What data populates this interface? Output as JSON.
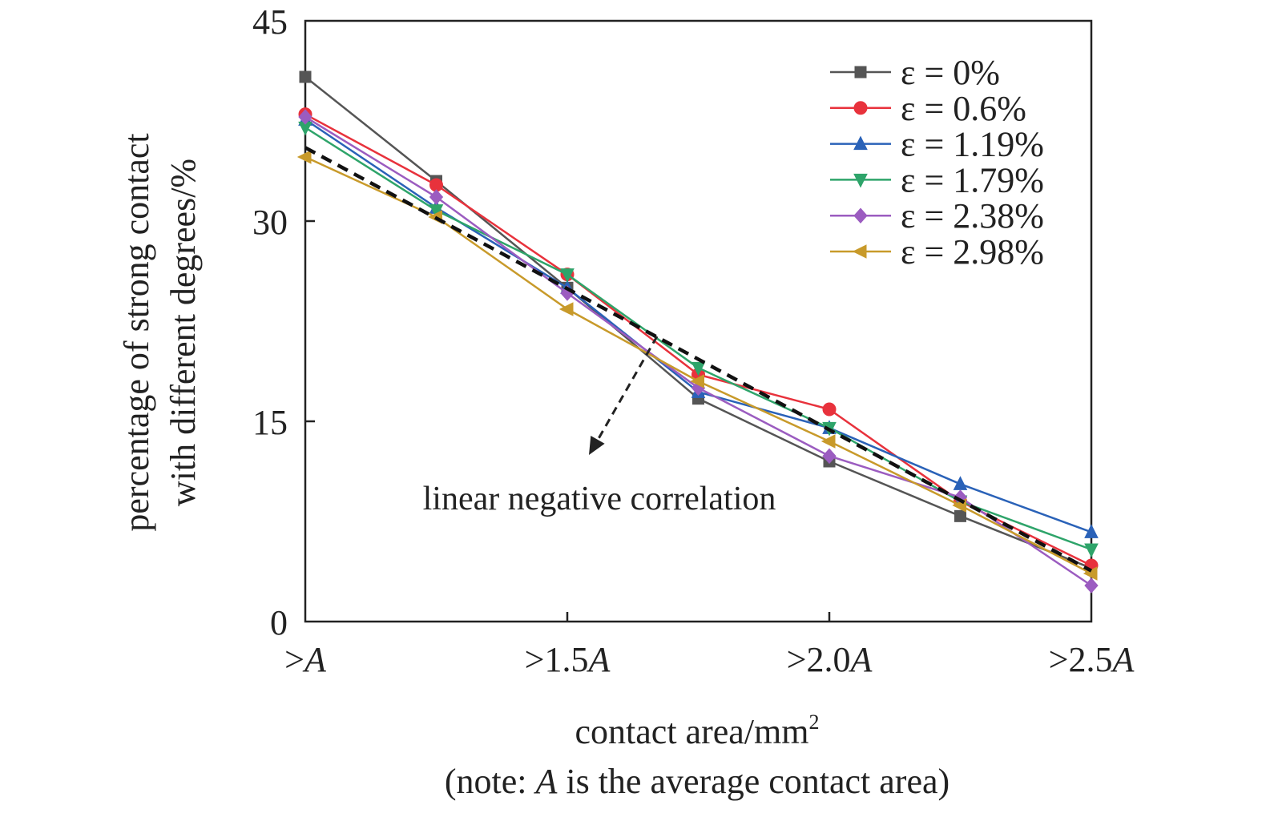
{
  "chart_data": {
    "type": "line",
    "x": [
      1.0,
      1.25,
      1.5,
      1.75,
      2.0,
      2.25,
      2.5
    ],
    "x_tick_labels": [
      {
        "x": 1.0,
        "prefix": ">",
        "num": "",
        "italic": "A"
      },
      {
        "x": 1.5,
        "prefix": ">",
        "num": "1.5",
        "italic": "A"
      },
      {
        "x": 2.0,
        "prefix": ">",
        "num": "2.0",
        "italic": "A"
      },
      {
        "x": 2.5,
        "prefix": ">",
        "num": "2.5",
        "italic": "A"
      }
    ],
    "y_ticks": [
      "0",
      "15",
      "30",
      "45"
    ],
    "y_tick_values": [
      0,
      15,
      30,
      45
    ],
    "ylim": [
      0,
      45
    ],
    "xlim": [
      1.0,
      2.5
    ],
    "ylabel_line1": "percentage of strong contact",
    "ylabel_line2": "with different degrees/%",
    "xlabel_main": "contact area/mm",
    "xlabel_sup": "2",
    "note_prefix": "(note: ",
    "note_italic": "A",
    "note_suffix": " is the average contact area)",
    "legend_position": "top-right",
    "grid": false,
    "series": [
      {
        "name": "ε = 0%",
        "color": "#555555",
        "marker": "square",
        "values": [
          40.8,
          33.0,
          25.0,
          16.7,
          12.0,
          7.9,
          4.0
        ]
      },
      {
        "name": "ε = 0.6%",
        "color": "#e8323c",
        "marker": "circle",
        "values": [
          38.0,
          32.7,
          26.0,
          18.5,
          15.9,
          9.0,
          4.2
        ]
      },
      {
        "name": "ε = 1.19%",
        "color": "#2a62b8",
        "marker": "triangle-up",
        "values": [
          37.6,
          31.0,
          25.0,
          17.2,
          14.5,
          10.3,
          6.7
        ]
      },
      {
        "name": "ε = 1.79%",
        "color": "#2ea46a",
        "marker": "triangle-down",
        "values": [
          37.0,
          30.8,
          26.0,
          19.0,
          14.5,
          9.0,
          5.4
        ]
      },
      {
        "name": "ε = 2.38%",
        "color": "#9b5cc0",
        "marker": "diamond",
        "values": [
          37.8,
          31.8,
          24.6,
          17.5,
          12.4,
          9.3,
          2.7
        ]
      },
      {
        "name": "ε = 2.98%",
        "color": "#c89a2a",
        "marker": "triangle-left",
        "values": [
          34.8,
          30.3,
          23.4,
          18.0,
          13.5,
          8.7,
          3.6
        ]
      }
    ],
    "trend_line": {
      "color": "#111111",
      "start": [
        1.0,
        35.5
      ],
      "end": [
        2.5,
        3.8
      ]
    },
    "annotation": {
      "text": "linear negative correlation",
      "arrow_color": "#222222"
    }
  }
}
